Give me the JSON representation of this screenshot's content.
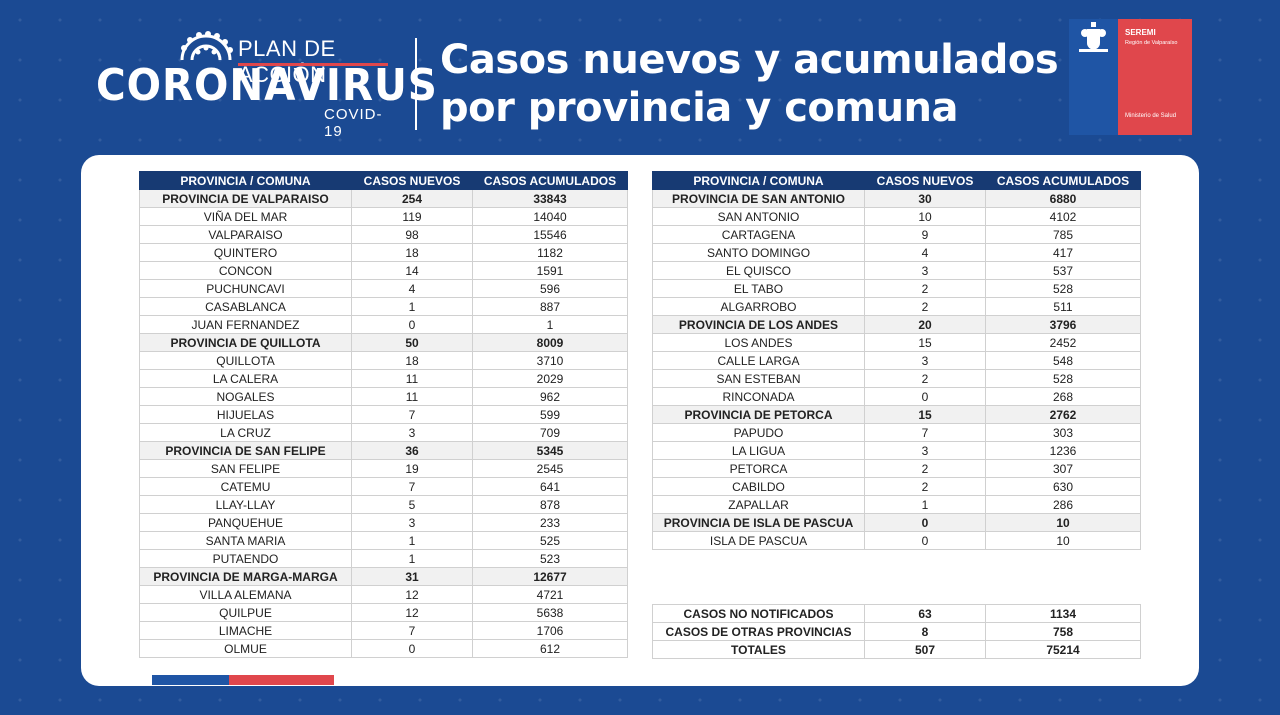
{
  "header": {
    "logo_plan": "PLAN DE ACCIÓN",
    "logo_main": "CORONAVIRUS",
    "logo_sub": "COVID-19",
    "title_line1": "Casos nuevos y acumulados",
    "title_line2": "por provincia y comuna"
  },
  "gov_logo": {
    "seremi": "SEREMI",
    "region": "Región de Valparaíso",
    "ministry": "Ministerio de Salud"
  },
  "columns": [
    "PROVINCIA / COMUNA",
    "CASOS NUEVOS",
    "CASOS ACUMULADOS"
  ],
  "left_table": [
    {
      "name": "PROVINCIA DE VALPARAISO",
      "nuevos": "254",
      "acumulados": "33843",
      "province": true
    },
    {
      "name": "VIÑA DEL MAR",
      "nuevos": "119",
      "acumulados": "14040",
      "province": false
    },
    {
      "name": "VALPARAISO",
      "nuevos": "98",
      "acumulados": "15546",
      "province": false
    },
    {
      "name": "QUINTERO",
      "nuevos": "18",
      "acumulados": "1182",
      "province": false
    },
    {
      "name": "CONCON",
      "nuevos": "14",
      "acumulados": "1591",
      "province": false
    },
    {
      "name": "PUCHUNCAVI",
      "nuevos": "4",
      "acumulados": "596",
      "province": false
    },
    {
      "name": "CASABLANCA",
      "nuevos": "1",
      "acumulados": "887",
      "province": false
    },
    {
      "name": "JUAN FERNANDEZ",
      "nuevos": "0",
      "acumulados": "1",
      "province": false
    },
    {
      "name": "PROVINCIA DE QUILLOTA",
      "nuevos": "50",
      "acumulados": "8009",
      "province": true
    },
    {
      "name": "QUILLOTA",
      "nuevos": "18",
      "acumulados": "3710",
      "province": false
    },
    {
      "name": "LA CALERA",
      "nuevos": "11",
      "acumulados": "2029",
      "province": false
    },
    {
      "name": "NOGALES",
      "nuevos": "11",
      "acumulados": "962",
      "province": false
    },
    {
      "name": "HIJUELAS",
      "nuevos": "7",
      "acumulados": "599",
      "province": false
    },
    {
      "name": "LA CRUZ",
      "nuevos": "3",
      "acumulados": "709",
      "province": false
    },
    {
      "name": "PROVINCIA DE SAN FELIPE",
      "nuevos": "36",
      "acumulados": "5345",
      "province": true
    },
    {
      "name": "SAN FELIPE",
      "nuevos": "19",
      "acumulados": "2545",
      "province": false
    },
    {
      "name": "CATEMU",
      "nuevos": "7",
      "acumulados": "641",
      "province": false
    },
    {
      "name": "LLAY-LLAY",
      "nuevos": "5",
      "acumulados": "878",
      "province": false
    },
    {
      "name": "PANQUEHUE",
      "nuevos": "3",
      "acumulados": "233",
      "province": false
    },
    {
      "name": "SANTA MARIA",
      "nuevos": "1",
      "acumulados": "525",
      "province": false
    },
    {
      "name": "PUTAENDO",
      "nuevos": "1",
      "acumulados": "523",
      "province": false
    },
    {
      "name": "PROVINCIA DE MARGA-MARGA",
      "nuevos": "31",
      "acumulados": "12677",
      "province": true
    },
    {
      "name": "VILLA ALEMANA",
      "nuevos": "12",
      "acumulados": "4721",
      "province": false
    },
    {
      "name": "QUILPUE",
      "nuevos": "12",
      "acumulados": "5638",
      "province": false
    },
    {
      "name": "LIMACHE",
      "nuevos": "7",
      "acumulados": "1706",
      "province": false
    },
    {
      "name": "OLMUE",
      "nuevos": "0",
      "acumulados": "612",
      "province": false
    }
  ],
  "right_table": [
    {
      "name": "PROVINCIA DE SAN ANTONIO",
      "nuevos": "30",
      "acumulados": "6880",
      "province": true
    },
    {
      "name": "SAN ANTONIO",
      "nuevos": "10",
      "acumulados": "4102",
      "province": false
    },
    {
      "name": "CARTAGENA",
      "nuevos": "9",
      "acumulados": "785",
      "province": false
    },
    {
      "name": "SANTO DOMINGO",
      "nuevos": "4",
      "acumulados": "417",
      "province": false
    },
    {
      "name": "EL QUISCO",
      "nuevos": "3",
      "acumulados": "537",
      "province": false
    },
    {
      "name": "EL TABO",
      "nuevos": "2",
      "acumulados": "528",
      "province": false
    },
    {
      "name": "ALGARROBO",
      "nuevos": "2",
      "acumulados": "511",
      "province": false
    },
    {
      "name": "PROVINCIA DE LOS ANDES",
      "nuevos": "20",
      "acumulados": "3796",
      "province": true
    },
    {
      "name": "LOS ANDES",
      "nuevos": "15",
      "acumulados": "2452",
      "province": false
    },
    {
      "name": "CALLE LARGA",
      "nuevos": "3",
      "acumulados": "548",
      "province": false
    },
    {
      "name": "SAN ESTEBAN",
      "nuevos": "2",
      "acumulados": "528",
      "province": false
    },
    {
      "name": "RINCONADA",
      "nuevos": "0",
      "acumulados": "268",
      "province": false
    },
    {
      "name": "PROVINCIA DE PETORCA",
      "nuevos": "15",
      "acumulados": "2762",
      "province": true
    },
    {
      "name": "PAPUDO",
      "nuevos": "7",
      "acumulados": "303",
      "province": false
    },
    {
      "name": "LA LIGUA",
      "nuevos": "3",
      "acumulados": "1236",
      "province": false
    },
    {
      "name": "PETORCA",
      "nuevos": "2",
      "acumulados": "307",
      "province": false
    },
    {
      "name": "CABILDO",
      "nuevos": "2",
      "acumulados": "630",
      "province": false
    },
    {
      "name": "ZAPALLAR",
      "nuevos": "1",
      "acumulados": "286",
      "province": false
    },
    {
      "name": "PROVINCIA DE ISLA DE PASCUA",
      "nuevos": "0",
      "acumulados": "10",
      "province": true
    },
    {
      "name": "ISLA DE PASCUA",
      "nuevos": "0",
      "acumulados": "10",
      "province": false
    }
  ],
  "totals_table": [
    {
      "name": "CASOS NO NOTIFICADOS",
      "nuevos": "63",
      "acumulados": "1134"
    },
    {
      "name": "CASOS DE OTRAS PROVINCIAS",
      "nuevos": "8",
      "acumulados": "758"
    },
    {
      "name": "TOTALES",
      "nuevos": "507",
      "acumulados": "75214"
    }
  ],
  "colors": {
    "background": "#1b4a93",
    "header_row": "#173a73",
    "accent_red": "#e0474c",
    "accent_blue": "#1f55a5"
  }
}
